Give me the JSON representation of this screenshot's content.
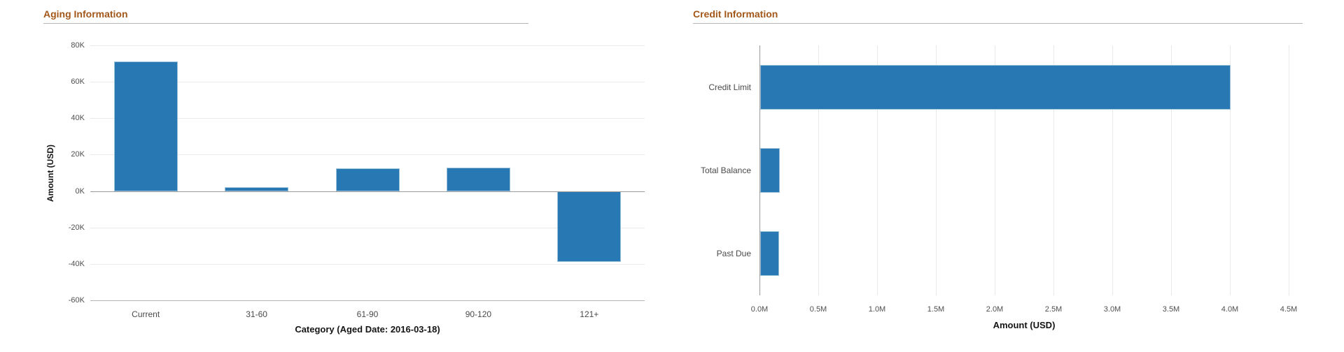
{
  "colors": {
    "bar": "#2878b3",
    "bar_border": "#9dc2dc",
    "panel_title": "#a35719",
    "header_rule": "#b7b6b5",
    "gridline": "#e9e9e9",
    "axis_line": "#9b9b9b",
    "plot_bottom_line": "#b4b4b4",
    "tick_text": "#4f4f4f",
    "category_text": "#4a4a4a",
    "axis_title_text": "#141414",
    "background": "#ffffff"
  },
  "sections": {
    "left_title": "Aging Information",
    "right_title": "Credit Information"
  },
  "chart_data": [
    {
      "type": "bar",
      "orientation": "vertical",
      "title": "Aging Information",
      "categories": [
        "Current",
        "31-60",
        "61-90",
        "90-120",
        "121+"
      ],
      "values": [
        71000,
        2000,
        12600,
        13000,
        -39000
      ],
      "xlabel": "Category (Aged Date: 2016-03-18)",
      "ylabel": "Amount (USD)",
      "ylim": [
        -60000,
        80000
      ],
      "ytick_step": 20000,
      "ytick_labels": [
        "80K",
        "60K",
        "40K",
        "20K",
        "0K",
        "-20K",
        "-40K",
        "-60K"
      ],
      "grid": true,
      "legend": "none"
    },
    {
      "type": "bar",
      "orientation": "horizontal",
      "title": "Credit Information",
      "categories": [
        "Credit Limit",
        "Total Balance",
        "Past Due"
      ],
      "values": [
        4000000,
        165000,
        160000
      ],
      "xlabel": "Amount (USD)",
      "ylabel": "",
      "xlim": [
        0,
        4500000
      ],
      "xtick_step": 500000,
      "xtick_labels": [
        "0.0M",
        "0.5M",
        "1.0M",
        "1.5M",
        "2.0M",
        "2.5M",
        "3.0M",
        "3.5M",
        "4.0M",
        "4.5M"
      ],
      "grid": true,
      "legend": "none"
    }
  ]
}
